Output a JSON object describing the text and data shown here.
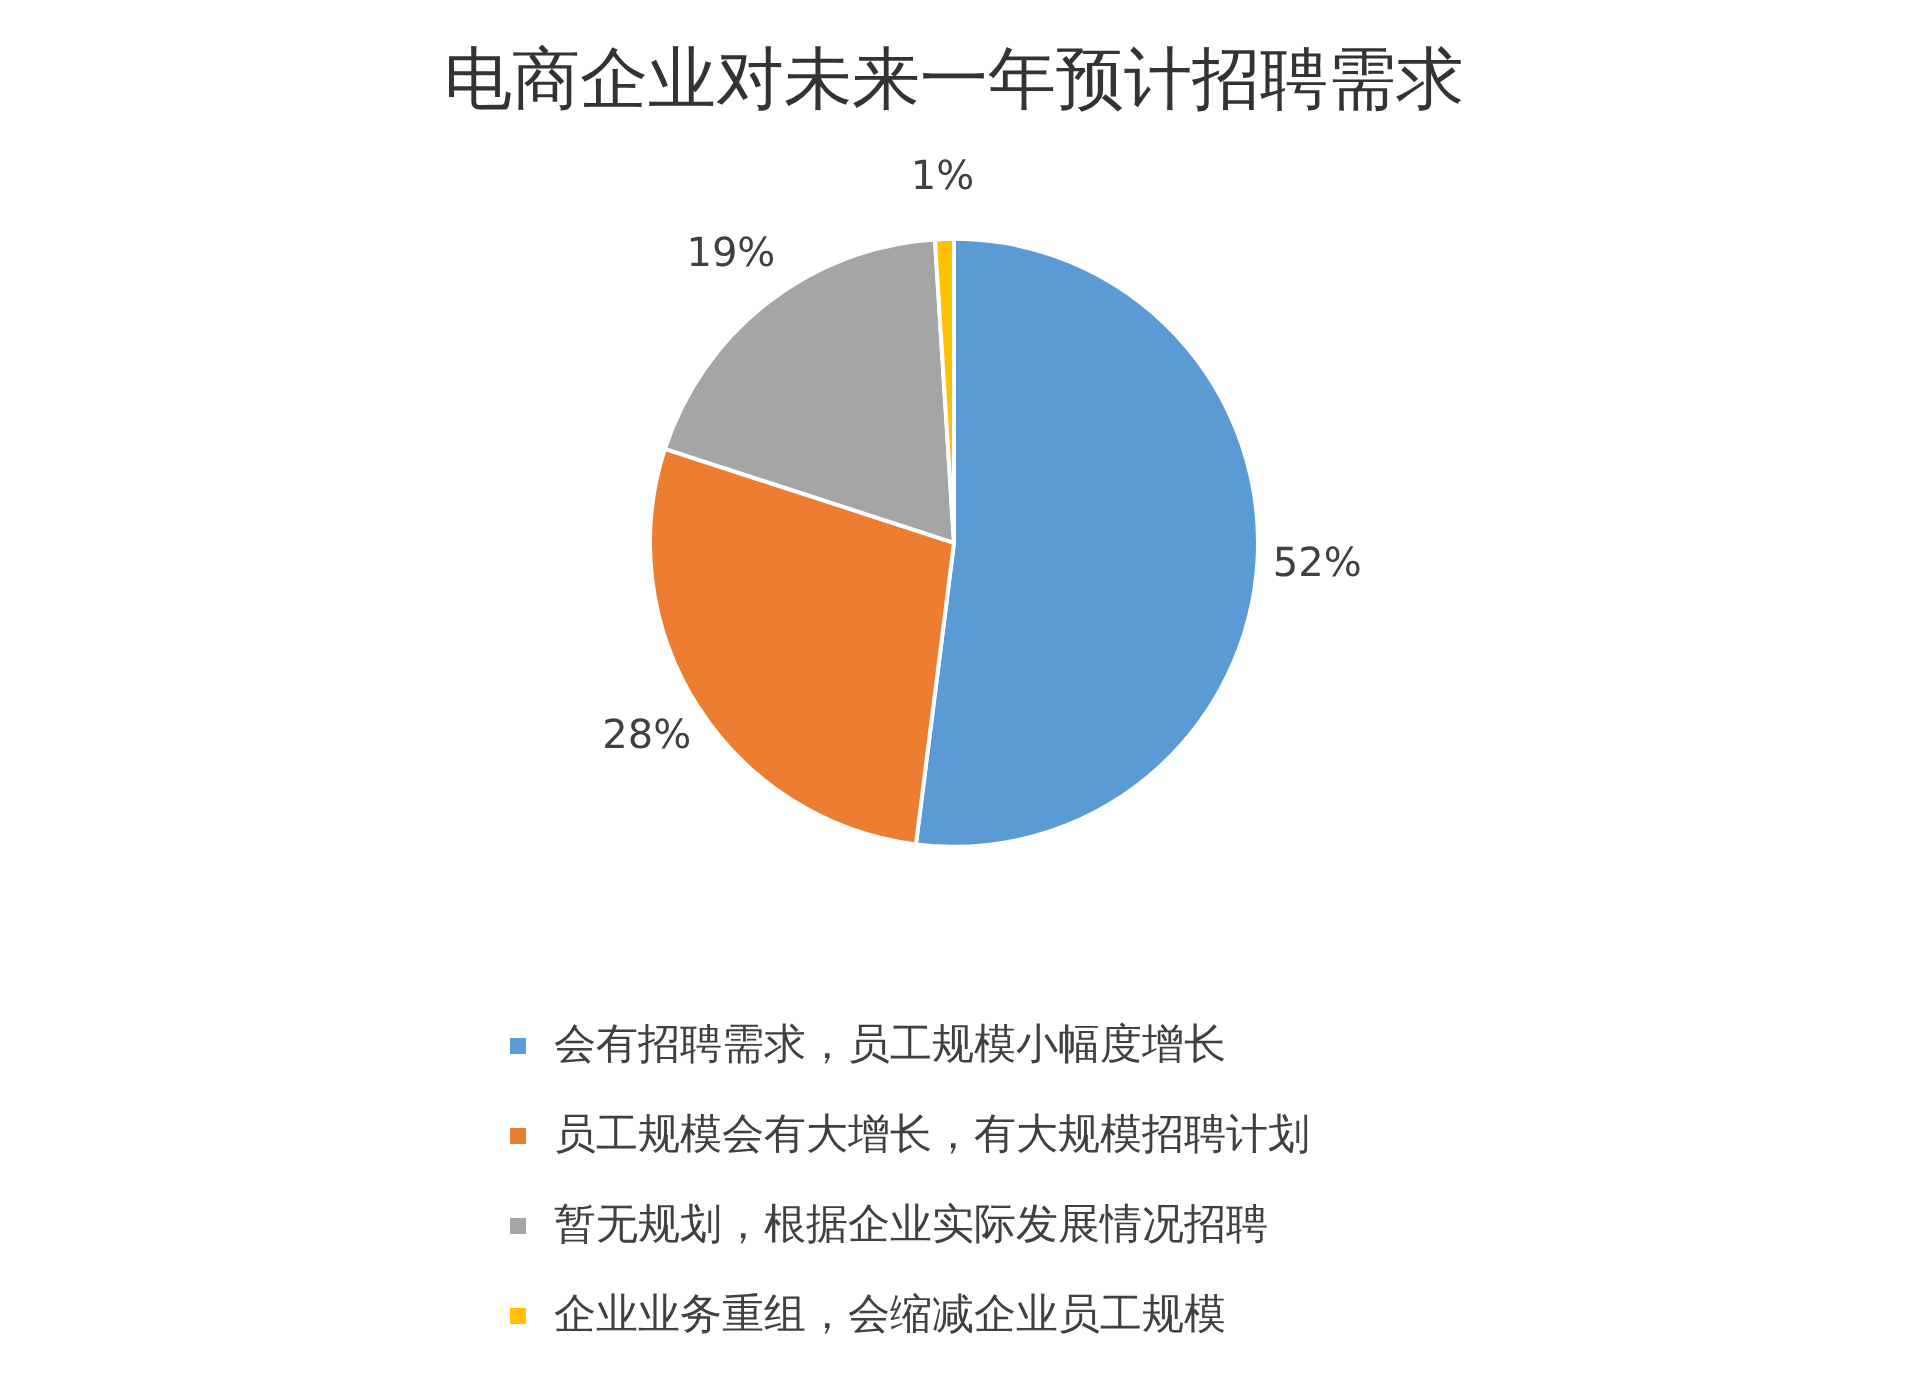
{
  "chart_data": {
    "type": "pie",
    "title": "电商企业对未来一年预计招聘需求",
    "categories": [
      "会有招聘需求，员工规模小幅度增长",
      "员工规模会有大增长，有大规模招聘计划",
      "暂无规划，根据企业实际发展情况招聘",
      "企业业务重组，会缩减企业员工规模"
    ],
    "values": [
      52,
      28,
      19,
      1
    ],
    "colors": [
      "#5b9bd5",
      "#ed7d31",
      "#a5a5a5",
      "#ffc000"
    ],
    "value_labels": [
      "52%",
      "28%",
      "19%",
      "1%"
    ],
    "legend": "bottom"
  }
}
